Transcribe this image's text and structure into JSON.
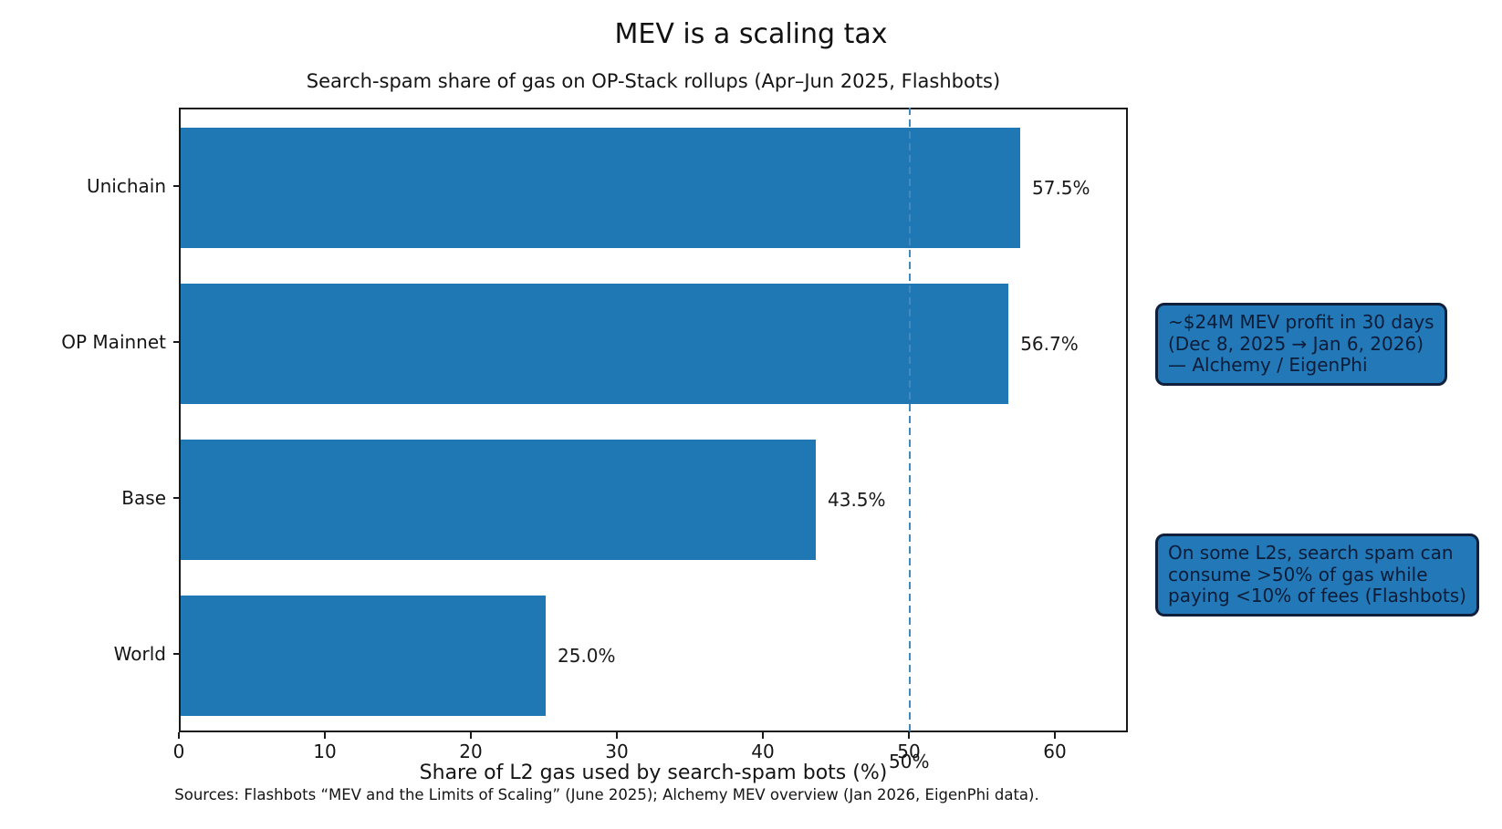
{
  "chart_data": {
    "type": "bar",
    "orientation": "horizontal",
    "title": "MEV is a scaling tax",
    "subtitle": "Search-spam share of gas on OP-Stack rollups (Apr–Jun 2025, Flashbots)",
    "categories": [
      "Unichain",
      "OP Mainnet",
      "Base",
      "World"
    ],
    "values": [
      57.5,
      56.7,
      43.5,
      25.0
    ],
    "value_labels": [
      "57.5%",
      "56.7%",
      "43.5%",
      "25.0%"
    ],
    "xlabel": "Share of L2 gas used by search-spam bots (%)",
    "xlim": [
      0,
      65
    ],
    "xticks": [
      0,
      10,
      20,
      30,
      40,
      50,
      60
    ],
    "grid": false,
    "legend": null,
    "reference_line": {
      "x": 50,
      "label": "50%",
      "style": "dashed"
    },
    "bar_color": "#1f77b4",
    "refline_color": "#4189be",
    "annotation_box_fill": "#2379b7",
    "annotation_box_border": "#10203c",
    "annotations": [
      {
        "id": "mev-profit",
        "lines": [
          "~$24M MEV profit in 30 days",
          "(Dec 8, 2025 → Jan 6, 2026)",
          "— Alchemy / EigenPhi"
        ]
      },
      {
        "id": "spam-gas",
        "lines": [
          "On some L2s, search spam can",
          "consume >50% of gas while",
          "paying <10% of fees (Flashbots)"
        ]
      }
    ],
    "source": "Sources: Flashbots “MEV and the Limits of Scaling” (June 2025); Alchemy MEV overview (Jan 2026, EigenPhi data)."
  }
}
